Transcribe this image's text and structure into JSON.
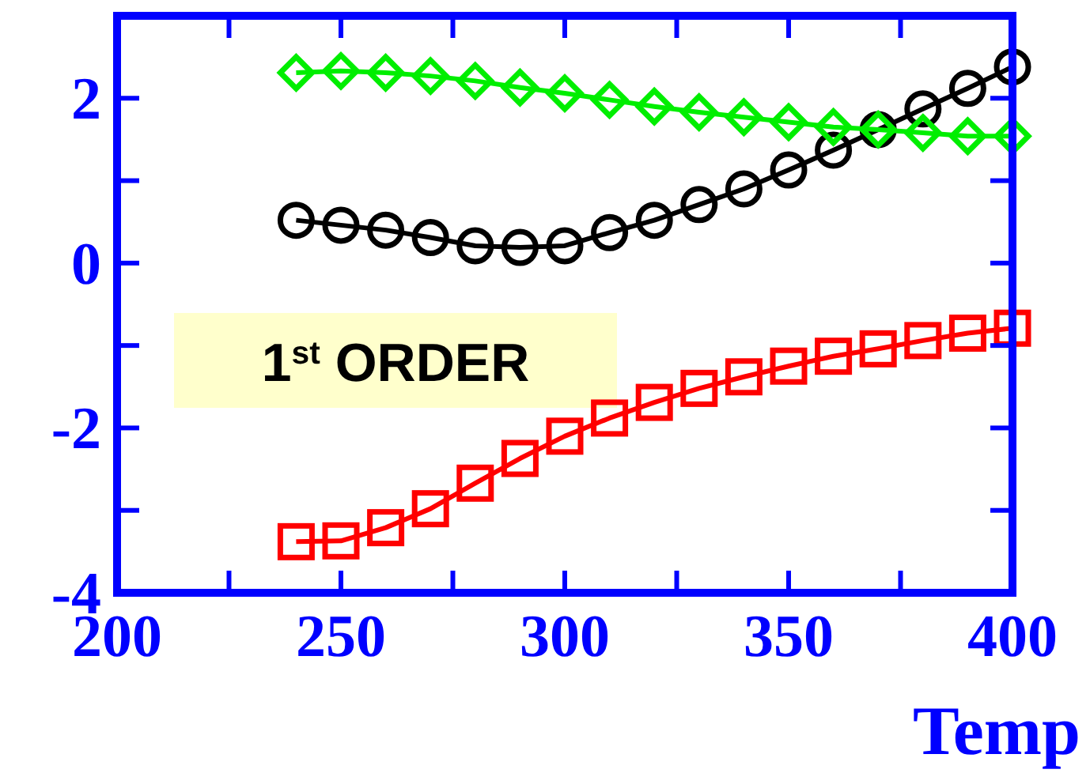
{
  "chart_data": {
    "type": "line",
    "xlabel": "Temp",
    "xlim": [
      200,
      400
    ],
    "xticks": [
      200,
      {
        "value": 225,
        "label": null
      },
      250,
      {
        "value": 275,
        "label": null
      },
      300,
      {
        "value": 325,
        "label": null
      },
      350,
      {
        "value": 375,
        "label": null
      },
      400
    ],
    "ylim": [
      -4,
      3
    ],
    "yticks": [
      -4,
      {
        "value": -3,
        "label": null
      },
      -2,
      {
        "value": -1,
        "label": null
      },
      0,
      {
        "value": 1,
        "label": null
      },
      2
    ],
    "grid": false,
    "line_style": "solid",
    "x": [
      240,
      250,
      260,
      270,
      280,
      290,
      300,
      310,
      320,
      330,
      340,
      350,
      360,
      370,
      380,
      390,
      400
    ],
    "series": [
      {
        "color": "#000000",
        "marker": "circle",
        "values": [
          0.52,
          0.46,
          0.4,
          0.31,
          0.21,
          0.19,
          0.21,
          0.37,
          0.52,
          0.71,
          0.9,
          1.13,
          1.37,
          1.62,
          1.87,
          2.12,
          2.38
        ]
      },
      {
        "color": "#00ee00",
        "marker": "diamond",
        "values": [
          2.31,
          2.33,
          2.31,
          2.27,
          2.21,
          2.13,
          2.06,
          1.98,
          1.9,
          1.83,
          1.77,
          1.71,
          1.65,
          1.62,
          1.58,
          1.54,
          1.54
        ]
      },
      {
        "color": "#ff0000",
        "marker": "square",
        "values": [
          -3.38,
          -3.37,
          -3.21,
          -2.98,
          -2.67,
          -2.37,
          -2.1,
          -1.88,
          -1.69,
          -1.52,
          -1.38,
          -1.25,
          -1.13,
          -1.04,
          -0.94,
          -0.85,
          -0.79
        ]
      }
    ],
    "annotations": [
      "1$^{st}$ ORDER"
    ]
  }
}
